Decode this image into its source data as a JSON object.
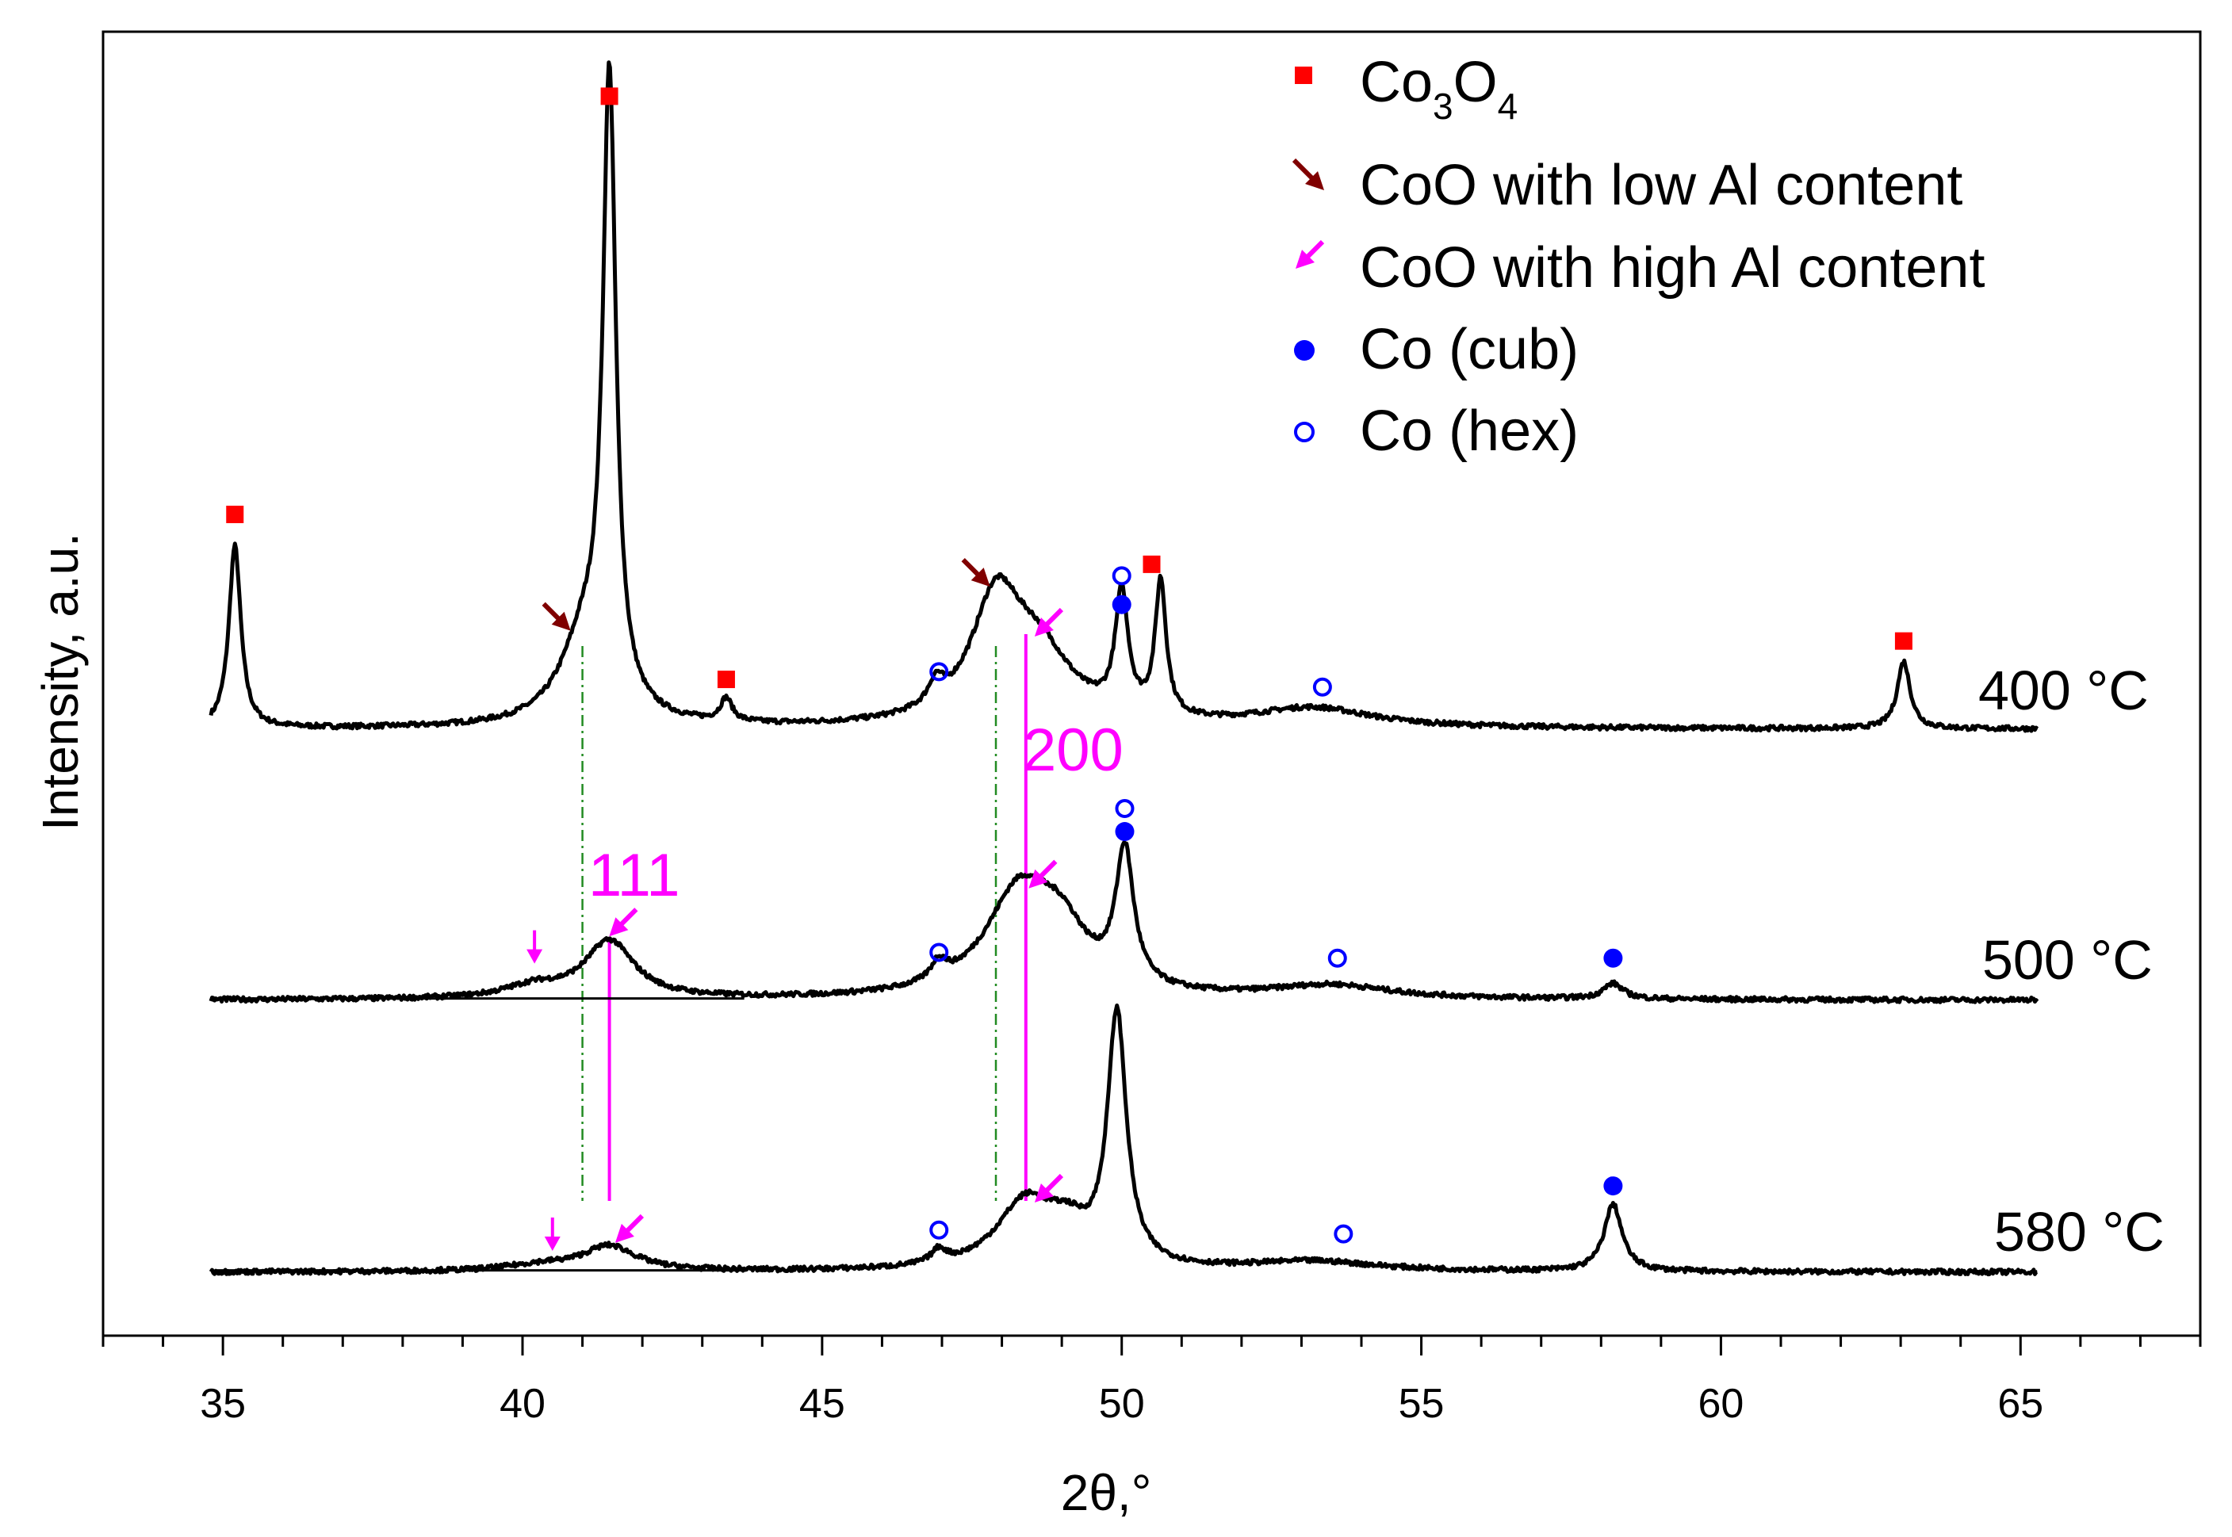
{
  "chart_data": {
    "type": "line",
    "title": "",
    "xlabel": "2θ,°",
    "ylabel": "Intensity, a.u.",
    "xlim": [
      33,
      68
    ],
    "x_ticks": [
      35,
      40,
      45,
      50,
      55,
      60,
      65
    ],
    "x_tick_labels": [
      "35",
      "40",
      "45",
      "50",
      "55",
      "60",
      "65"
    ],
    "y_ticks_shown": false,
    "legend": {
      "placement": "top-right",
      "entries": [
        {
          "marker": "filled-square",
          "color": "#ff0000",
          "label_main": "Co",
          "label_sub1": "3",
          "label_mid": "O",
          "label_sub2": "4"
        },
        {
          "marker": "arrow",
          "color": "#800000",
          "label": "CoO with low Al content"
        },
        {
          "marker": "arrow",
          "color": "#ff00ff",
          "label": "CoO with high Al content"
        },
        {
          "marker": "filled-circle",
          "color": "#0000ff",
          "label": "Co (cub)"
        },
        {
          "marker": "open-circle",
          "color": "#0000ff",
          "label": "Co (hex)"
        }
      ]
    },
    "series": [
      {
        "name": "400 °C",
        "label": "400 °C",
        "baseline": 0,
        "peaks": [
          {
            "x": 35.2,
            "h": 0.95,
            "w": 0.12
          },
          {
            "x": 41.05,
            "h": 0.45,
            "w": 0.5
          },
          {
            "x": 41.45,
            "h": 3.2,
            "w": 0.13
          },
          {
            "x": 43.4,
            "h": 0.12,
            "w": 0.12
          },
          {
            "x": 46.9,
            "h": 0.12,
            "w": 0.15
          },
          {
            "x": 47.9,
            "h": 0.6,
            "w": 0.5
          },
          {
            "x": 48.6,
            "h": 0.35,
            "w": 0.7
          },
          {
            "x": 50.0,
            "h": 0.62,
            "w": 0.13
          },
          {
            "x": 50.65,
            "h": 0.7,
            "w": 0.11
          },
          {
            "x": 53.2,
            "h": 0.1,
            "w": 1.2
          },
          {
            "x": 63.05,
            "h": 0.35,
            "w": 0.13
          }
        ],
        "markers": [
          {
            "type": "co3o4",
            "x": 35.2,
            "y": 1.12
          },
          {
            "type": "co3o4",
            "x": 41.45,
            "y": 3.3
          },
          {
            "type": "co3o4",
            "x": 43.4,
            "y": 0.26
          },
          {
            "type": "co3o4",
            "x": 50.5,
            "y": 0.86
          },
          {
            "type": "co3o4",
            "x": 63.05,
            "y": 0.46
          },
          {
            "type": "co_hex",
            "x": 46.95,
            "y": 0.3
          },
          {
            "type": "co_hex",
            "x": 50.0,
            "y": 0.8
          },
          {
            "type": "co_hex",
            "x": 53.35,
            "y": 0.22
          },
          {
            "type": "co_cub",
            "x": 50.0,
            "y": 0.65
          },
          {
            "type": "coo_low",
            "x": 40.75,
            "y": 0.53
          },
          {
            "type": "coo_low",
            "x": 47.75,
            "y": 0.76
          },
          {
            "type": "coo_high",
            "x": 48.6,
            "y": 0.5
          }
        ]
      },
      {
        "name": "500 °C",
        "label": "500 °C",
        "baseline": 0,
        "peaks": [
          {
            "x": 41.45,
            "h": 0.3,
            "w": 0.5
          },
          {
            "x": 40.2,
            "h": 0.06,
            "w": 0.6
          },
          {
            "x": 46.95,
            "h": 0.1,
            "w": 0.15
          },
          {
            "x": 48.3,
            "h": 0.55,
            "w": 0.7
          },
          {
            "x": 49.0,
            "h": 0.25,
            "w": 0.5
          },
          {
            "x": 50.05,
            "h": 0.7,
            "w": 0.18
          },
          {
            "x": 53.5,
            "h": 0.07,
            "w": 1.2
          },
          {
            "x": 58.2,
            "h": 0.08,
            "w": 0.2
          }
        ],
        "markers": [
          {
            "type": "co_hex",
            "x": 50.05,
            "y": 1.0
          },
          {
            "type": "co_cub",
            "x": 50.05,
            "y": 0.88
          },
          {
            "type": "co_hex",
            "x": 46.95,
            "y": 0.25
          },
          {
            "type": "co_hex",
            "x": 53.6,
            "y": 0.22
          },
          {
            "type": "co_cub",
            "x": 58.2,
            "y": 0.22
          },
          {
            "type": "coo_high_down",
            "x": 40.2,
            "y": 0.2
          },
          {
            "type": "coo_high",
            "x": 41.5,
            "y": 0.35
          },
          {
            "type": "coo_high",
            "x": 48.5,
            "y": 0.6
          }
        ]
      },
      {
        "name": "580 °C",
        "label": "580 °C",
        "baseline": 0,
        "peaks": [
          {
            "x": 41.45,
            "h": 0.13,
            "w": 0.55
          },
          {
            "x": 40.3,
            "h": 0.03,
            "w": 0.7
          },
          {
            "x": 46.95,
            "h": 0.07,
            "w": 0.15
          },
          {
            "x": 48.4,
            "h": 0.35,
            "w": 0.6
          },
          {
            "x": 49.1,
            "h": 0.15,
            "w": 0.4
          },
          {
            "x": 49.92,
            "h": 1.3,
            "w": 0.19
          },
          {
            "x": 53.2,
            "h": 0.05,
            "w": 1.3
          },
          {
            "x": 58.2,
            "h": 0.35,
            "w": 0.18
          }
        ],
        "markers": [
          {
            "type": "co_hex",
            "x": 46.95,
            "y": 0.22
          },
          {
            "type": "co_hex",
            "x": 53.7,
            "y": 0.2
          },
          {
            "type": "co_cub",
            "x": 58.2,
            "y": 0.45
          },
          {
            "type": "coo_high_down",
            "x": 40.5,
            "y": 0.12
          },
          {
            "type": "coo_high",
            "x": 41.6,
            "y": 0.17
          },
          {
            "type": "coo_high",
            "x": 48.6,
            "y": 0.38
          }
        ]
      }
    ],
    "guide_lines": [
      {
        "x": 41.0,
        "color": "#228b22",
        "style": "dashed"
      },
      {
        "x": 47.9,
        "color": "#228b22",
        "style": "dashed"
      },
      {
        "x": 41.45,
        "color": "#ff00ff",
        "style": "solid"
      },
      {
        "x": 48.4,
        "color": "#ff00ff",
        "style": "solid"
      }
    ],
    "annotations": [
      {
        "text": "111",
        "x": 41.5,
        "color": "#ff00ff"
      },
      {
        "text": "200",
        "x": 48.9,
        "color": "#ff00ff"
      }
    ]
  }
}
